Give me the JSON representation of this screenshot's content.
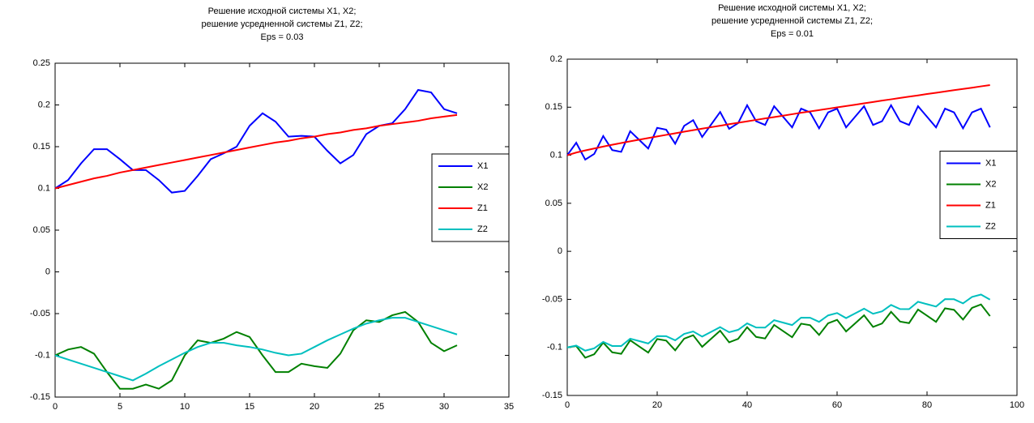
{
  "chart_data": [
    {
      "type": "line",
      "title": [
        "Решение исходной системы X1, X2;",
        "решение усредненной системы Z1, Z2;",
        "Eps = 0.03"
      ],
      "x": [
        0,
        1,
        2,
        3,
        4,
        5,
        6,
        7,
        8,
        9,
        10,
        11,
        12,
        13,
        14,
        15,
        16,
        17,
        18,
        19,
        20,
        21,
        22,
        23,
        24,
        25,
        26,
        27,
        28,
        29,
        30,
        31
      ],
      "series": [
        {
          "name": "X1",
          "color": "#0000ff",
          "values": [
            0.1,
            0.11,
            0.13,
            0.147,
            0.147,
            0.135,
            0.122,
            0.122,
            0.11,
            0.095,
            0.097,
            0.115,
            0.135,
            0.142,
            0.15,
            0.175,
            0.19,
            0.18,
            0.162,
            0.163,
            0.162,
            0.145,
            0.13,
            0.14,
            0.165,
            0.175,
            0.178,
            0.195,
            0.218,
            0.215,
            0.195,
            0.19
          ]
        },
        {
          "name": "X2",
          "color": "#008000",
          "values": [
            -0.1,
            -0.093,
            -0.09,
            -0.098,
            -0.12,
            -0.14,
            -0.14,
            -0.135,
            -0.14,
            -0.13,
            -0.1,
            -0.082,
            -0.085,
            -0.08,
            -0.072,
            -0.078,
            -0.1,
            -0.12,
            -0.12,
            -0.11,
            -0.113,
            -0.115,
            -0.098,
            -0.07,
            -0.058,
            -0.06,
            -0.052,
            -0.048,
            -0.06,
            -0.085,
            -0.095,
            -0.088
          ]
        },
        {
          "name": "Z1",
          "color": "#ff0000",
          "values": [
            0.1,
            0.104,
            0.108,
            0.112,
            0.115,
            0.119,
            0.122,
            0.125,
            0.128,
            0.131,
            0.134,
            0.137,
            0.14,
            0.143,
            0.146,
            0.149,
            0.152,
            0.155,
            0.157,
            0.16,
            0.162,
            0.165,
            0.167,
            0.17,
            0.172,
            0.175,
            0.177,
            0.179,
            0.181,
            0.184,
            0.186,
            0.188
          ]
        },
        {
          "name": "Z2",
          "color": "#00bfbf",
          "values": [
            -0.1,
            -0.105,
            -0.11,
            -0.115,
            -0.12,
            -0.125,
            -0.13,
            -0.122,
            -0.113,
            -0.105,
            -0.097,
            -0.09,
            -0.085,
            -0.085,
            -0.088,
            -0.09,
            -0.093,
            -0.097,
            -0.1,
            -0.098,
            -0.09,
            -0.082,
            -0.075,
            -0.068,
            -0.062,
            -0.058,
            -0.055,
            -0.055,
            -0.06,
            -0.065,
            -0.07,
            -0.075
          ]
        }
      ],
      "xlim": [
        0,
        35
      ],
      "xticks": [
        0,
        5,
        10,
        15,
        20,
        25,
        30,
        35
      ],
      "ylim": [
        -0.15,
        0.25
      ],
      "yticks": [
        -0.15,
        -0.1,
        -0.05,
        0,
        0.05,
        0.1,
        0.15,
        0.2,
        0.25
      ],
      "legend": "right"
    },
    {
      "type": "line",
      "title": [
        "Решение исходной системы X1, X2;",
        "решение усредненной системы Z1, Z2;",
        "Eps = 0.01"
      ],
      "x": [
        0,
        2,
        4,
        6,
        8,
        10,
        12,
        14,
        16,
        18,
        20,
        22,
        24,
        26,
        28,
        30,
        32,
        34,
        36,
        38,
        40,
        42,
        44,
        46,
        48,
        50,
        52,
        54,
        56,
        58,
        60,
        62,
        64,
        66,
        68,
        70,
        72,
        74,
        76,
        78,
        80,
        82,
        84,
        86,
        88,
        90,
        92,
        94
      ],
      "series": [
        {
          "name": "X1",
          "color": "#0000ff",
          "values": [
            0.1,
            0.113,
            0.0955,
            0.1014,
            0.12,
            0.1054,
            0.1035,
            0.125,
            0.116,
            0.107,
            0.1285,
            0.1266,
            0.112,
            0.1306,
            0.1365,
            0.119,
            0.132,
            0.145,
            0.1275,
            0.1334,
            0.152,
            0.1354,
            0.1315,
            0.151,
            0.14,
            0.129,
            0.1485,
            0.1446,
            0.128,
            0.1446,
            0.1485,
            0.129,
            0.14,
            0.151,
            0.1315,
            0.1354,
            0.152,
            0.1354,
            0.1315,
            0.151,
            0.14,
            0.129,
            0.1485,
            0.1446,
            0.128,
            0.1446,
            0.1485,
            0.129
          ]
        },
        {
          "name": "X2",
          "color": "#008000",
          "values": [
            -0.1,
            -0.0986,
            -0.1107,
            -0.1071,
            -0.095,
            -0.1051,
            -0.1067,
            -0.0926,
            -0.099,
            -0.1054,
            -0.0913,
            -0.0929,
            -0.103,
            -0.0909,
            -0.0873,
            -0.0994,
            -0.091,
            -0.0826,
            -0.0947,
            -0.0911,
            -0.079,
            -0.0891,
            -0.0907,
            -0.0766,
            -0.083,
            -0.0894,
            -0.0753,
            -0.0769,
            -0.087,
            -0.0749,
            -0.0713,
            -0.0834,
            -0.075,
            -0.0666,
            -0.0787,
            -0.0751,
            -0.063,
            -0.0731,
            -0.0747,
            -0.0606,
            -0.067,
            -0.0734,
            -0.0593,
            -0.0609,
            -0.071,
            -0.0589,
            -0.0553,
            -0.0674
          ]
        },
        {
          "name": "Z1",
          "color": "#ff0000",
          "values": [
            0.1,
            0.1028,
            0.105,
            0.107,
            0.109,
            0.1109,
            0.1127,
            0.1145,
            0.1162,
            0.1179,
            0.1196,
            0.1212,
            0.1228,
            0.1245,
            0.1261,
            0.1277,
            0.1292,
            0.1307,
            0.1323,
            0.1338,
            0.1353,
            0.1368,
            0.1383,
            0.1397,
            0.1412,
            0.1427,
            0.1442,
            0.1456,
            0.147,
            0.1484,
            0.1498,
            0.1512,
            0.1526,
            0.154,
            0.1554,
            0.1569,
            0.1582,
            0.1596,
            0.161,
            0.1623,
            0.1637,
            0.165,
            0.1664,
            0.1677,
            0.169,
            0.1703,
            0.1717,
            0.173
          ]
        },
        {
          "name": "Z2",
          "color": "#00bfbf",
          "values": [
            -0.1,
            -0.0981,
            -0.1034,
            -0.1009,
            -0.0942,
            -0.0985,
            -0.0986,
            -0.0909,
            -0.0934,
            -0.0959,
            -0.0882,
            -0.0883,
            -0.0926,
            -0.0859,
            -0.0834,
            -0.0887,
            -0.0838,
            -0.0789,
            -0.0842,
            -0.0817,
            -0.075,
            -0.0793,
            -0.0794,
            -0.0717,
            -0.0742,
            -0.0767,
            -0.069,
            -0.0691,
            -0.0734,
            -0.0667,
            -0.0642,
            -0.0695,
            -0.0646,
            -0.0597,
            -0.065,
            -0.0625,
            -0.0558,
            -0.0601,
            -0.0602,
            -0.0525,
            -0.055,
            -0.0575,
            -0.0498,
            -0.0499,
            -0.0542,
            -0.0475,
            -0.045,
            -0.0503
          ]
        }
      ],
      "xlim": [
        0,
        100
      ],
      "xticks": [
        0,
        20,
        40,
        60,
        80,
        100
      ],
      "ylim": [
        -0.15,
        0.2
      ],
      "yticks": [
        -0.15,
        -0.1,
        -0.05,
        0,
        0.05,
        0.1,
        0.15,
        0.2
      ],
      "legend": "right"
    }
  ]
}
